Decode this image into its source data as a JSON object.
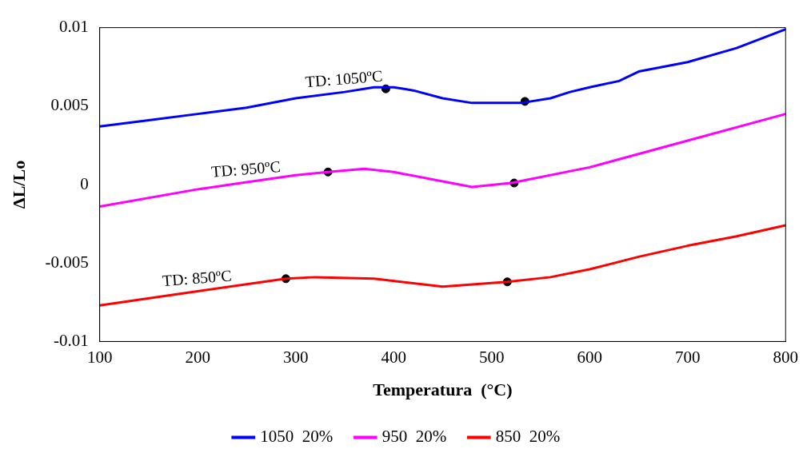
{
  "chart_data": {
    "type": "line",
    "xlabel": "Temperatura  (°C)",
    "ylabel": "ΔL/Lo",
    "xlim": [
      100,
      800
    ],
    "xticks": [
      100,
      200,
      300,
      400,
      500,
      600,
      700,
      800
    ],
    "ylim": [
      -0.01,
      0.01
    ],
    "yticks": [
      -0.01,
      -0.005,
      0,
      0.005,
      0.01
    ],
    "grid": false,
    "legend": "bottom",
    "marker": "none",
    "line_style": "solid",
    "series": [
      {
        "name": "1050  20%",
        "color": "#0000ff",
        "x": [
          100,
          150,
          200,
          250,
          300,
          350,
          380,
          400,
          420,
          450,
          480,
          500,
          530,
          560,
          580,
          600,
          630,
          650,
          700,
          750,
          800
        ],
        "values": [
          0.0037,
          0.0041,
          0.0045,
          0.0049,
          0.0055,
          0.0059,
          0.0062,
          0.0062,
          0.006,
          0.0055,
          0.0052,
          0.0052,
          0.0052,
          0.0055,
          0.0059,
          0.0062,
          0.0066,
          0.0072,
          0.0078,
          0.0087,
          0.0099
        ]
      },
      {
        "name": "950  20%",
        "color": "#ff00ff",
        "x": [
          100,
          200,
          250,
          300,
          333,
          370,
          400,
          450,
          480,
          520,
          600,
          700,
          800
        ],
        "values": [
          -0.0014,
          -0.0003,
          0.00015,
          0.0006,
          0.0008,
          0.001,
          0.0008,
          0.0002,
          -0.00015,
          0.0001,
          0.0011,
          0.0028,
          0.0045
        ]
      },
      {
        "name": "850  20%",
        "color": "#ff0000",
        "x": [
          100,
          200,
          290,
          320,
          380,
          450,
          516,
          560,
          600,
          650,
          700,
          750,
          800
        ],
        "values": [
          -0.0077,
          -0.0068,
          -0.006,
          -0.0059,
          -0.006,
          -0.0065,
          -0.0062,
          -0.0059,
          -0.0054,
          -0.0046,
          -0.0039,
          -0.0033,
          -0.0026
        ]
      },
      {
        "type": "scatter",
        "color": "#000000",
        "marker": "circle",
        "x": [
          392,
          534,
          333,
          523,
          290,
          516
        ],
        "values": [
          0.0061,
          0.0053,
          0.0008,
          0.0001,
          -0.006,
          -0.0062
        ]
      }
    ],
    "annotations": [
      {
        "text": "TD: 1050ºC",
        "x": 350,
        "y": 0.0059
      },
      {
        "text": "TD: 950ºC",
        "x": 250,
        "y": 0.00015
      },
      {
        "text": "TD: 850ºC",
        "x": 200,
        "y": -0.0068
      }
    ]
  }
}
